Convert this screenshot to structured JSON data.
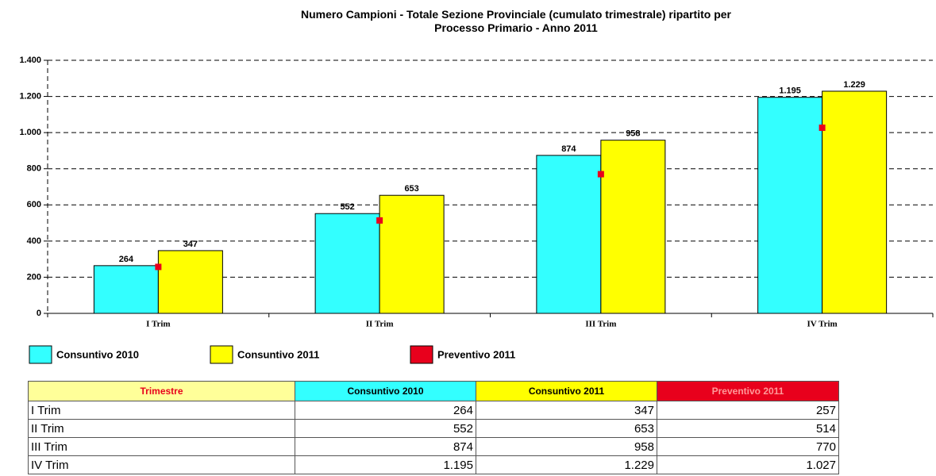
{
  "chart_data": {
    "type": "bar",
    "title": "Numero Campioni - Totale Sezione Provinciale (cumulato trimestrale) ripartito per Processo Primario - Anno 2011",
    "categories": [
      "I Trim",
      "II Trim",
      "III Trim",
      "IV Trim"
    ],
    "series": [
      {
        "name": "Consuntivo 2010",
        "color": "#33ffff",
        "type": "bar",
        "values": [
          264,
          552,
          874,
          1195
        ],
        "value_labels": [
          "264",
          "552",
          "874",
          "1.195"
        ]
      },
      {
        "name": "Consuntivo 2011",
        "color": "#ffff00",
        "type": "bar",
        "values": [
          347,
          653,
          958,
          1229
        ],
        "value_labels": [
          "347",
          "653",
          "958",
          "1.229"
        ]
      },
      {
        "name": "Preventivo 2011",
        "color": "#e8001c",
        "type": "scatter",
        "values": [
          257,
          514,
          770,
          1027
        ]
      }
    ],
    "ylim": [
      0,
      1400
    ],
    "yticks": [
      0,
      200,
      400,
      600,
      800,
      {
        "value": 1000,
        "label": "1.000"
      },
      {
        "value": 1200,
        "label": "1.200"
      },
      {
        "value": 1400,
        "label": "1.400"
      }
    ],
    "grid": true
  },
  "table": {
    "header": [
      "Trimestre",
      "Consuntivo 2010",
      "Consuntivo 2011",
      "Preventivo 2011"
    ],
    "rows": [
      [
        "I Trim",
        "264",
        "347",
        "257"
      ],
      [
        "II Trim",
        "552",
        "653",
        "514"
      ],
      [
        "III Trim",
        "874",
        "958",
        "770"
      ],
      [
        "IV Trim",
        "1.195",
        "1.229",
        "1.027"
      ]
    ]
  }
}
